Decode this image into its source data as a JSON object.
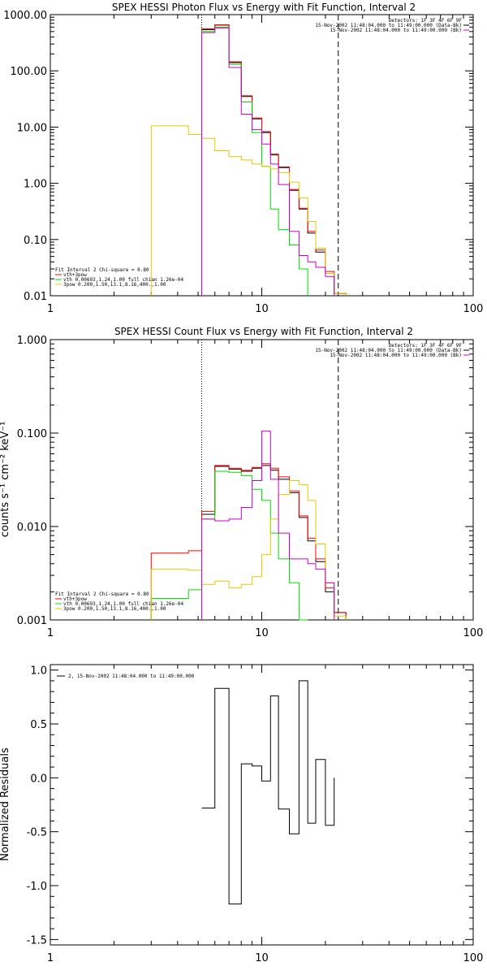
{
  "chart_data": [
    {
      "type": "line",
      "title": "SPEX HESSI Photon Flux vs Energy with Fit Function, Interval 2",
      "xscale": "log",
      "yscale": "log",
      "xlim": [
        1,
        100
      ],
      "ylim": [
        0.01,
        1000
      ],
      "xtick_labels": [
        "1",
        "10",
        "100"
      ],
      "ytick_labels": [
        "0.01",
        "0.10",
        "1.00",
        "10.00",
        "100.00",
        "1000.00"
      ],
      "info_lines": [
        "Detectors: 1F 3F 4F 6F 9F",
        "15-Nov-2002 11:48:04.000 to 11:49:00.000 (Data-Bk)",
        "15-Nov-2002 11:48:04.000 to 11:49:00.000 (Bk)"
      ],
      "legend_lines": [
        "Fit Interval 2   Chi-square = 0.80",
        "vth+3pow",
        "vth 0.00693,1.24,1.00  full chian 1.26e-04",
        "3pow 0.200,1.50,13.1,8.16,400.,1.00"
      ],
      "energy_edges": [
        3.0,
        4.5,
        5.2,
        6.0,
        7.0,
        8.0,
        9.0,
        10.0,
        11.0,
        12.0,
        13.5,
        15.0,
        16.5,
        18.0,
        20.0,
        22.0,
        25.0
      ],
      "series": [
        {
          "name": "Data-Bk",
          "values": [
            null,
            null,
            540,
            650,
            140,
            35,
            14,
            8,
            3.2,
            1.9,
            0.75,
            0.35,
            0.13,
            0.06,
            0.025,
            0.011
          ]
        },
        {
          "name": "vth+3pow",
          "values": [
            null,
            null,
            560,
            660,
            145,
            36,
            14.5,
            8.3,
            3.3,
            1.95,
            0.78,
            0.36,
            0.14,
            0.065,
            0.027,
            0.011
          ]
        },
        {
          "name": "vth",
          "values": [
            null,
            null,
            500,
            600,
            130,
            28,
            8,
            2.0,
            0.35,
            0.15,
            0.08,
            0.03,
            null,
            null,
            null,
            null
          ]
        },
        {
          "name": "3pow",
          "values": [
            10.5,
            7.4,
            6.3,
            3.8,
            3.0,
            2.6,
            2.2,
            2.0,
            1.8,
            1.55,
            1.05,
            0.55,
            0.21,
            0.07,
            0.025,
            0.011
          ]
        },
        {
          "name": "Bk",
          "values": [
            null,
            null,
            480,
            580,
            115,
            17,
            9,
            5,
            2.2,
            0.95,
            0.14,
            0.052,
            0.04,
            0.032,
            0.022,
            null
          ]
        }
      ],
      "vlines": [
        {
          "x": 5.2,
          "style": "dotted"
        },
        {
          "x": 23.0,
          "style": "dashed"
        }
      ]
    },
    {
      "type": "line",
      "title": "SPEX HESSI Count Flux vs Energy with Fit Function, Interval 2",
      "xscale": "log",
      "yscale": "log",
      "xlim": [
        1,
        100
      ],
      "ylim": [
        0.001,
        1.0
      ],
      "xtick_labels": [
        "1",
        "10",
        "100"
      ],
      "ytick_labels": [
        "0.001",
        "0.010",
        "0.100",
        "1.000"
      ],
      "ylabel": "counts s⁻¹ cm⁻² keV⁻¹",
      "info_lines": [
        "Detectors: 1F 3F 4F 6F 9F",
        "15-Nov-2002 11:48:04.000 to 11:49:00.000 (Data-Bk)",
        "15-Nov-2002 11:48:04.000 to 11:49:00.000 (Bk)"
      ],
      "legend_lines": [
        "Fit Interval 2   Chi-square = 0.80",
        "vth+3pow",
        "vth 0.00693,1.24,1.00  full chian 1.26e-04",
        "3pow 0.200,1.50,13.1,8.16,400.,1.00"
      ],
      "energy_edges": [
        3.0,
        4.5,
        5.2,
        6.0,
        7.0,
        8.0,
        9.0,
        10.0,
        11.0,
        12.0,
        13.5,
        15.0,
        16.5,
        18.0,
        20.0,
        22.0,
        25.0
      ],
      "series": [
        {
          "name": "Data-Bk",
          "values": [
            null,
            null,
            0.0135,
            0.044,
            0.041,
            0.039,
            0.042,
            0.045,
            0.04,
            0.032,
            0.023,
            0.0125,
            0.007,
            0.0042,
            0.002,
            0.0012
          ]
        },
        {
          "name": "vth+3pow",
          "values": [
            0.0052,
            0.0055,
            0.0145,
            0.045,
            0.042,
            0.04,
            0.043,
            0.047,
            0.042,
            0.034,
            0.024,
            0.013,
            0.0075,
            0.0045,
            0.0022,
            0.0012
          ]
        },
        {
          "name": "vth",
          "values": [
            0.0017,
            0.0021,
            0.012,
            0.039,
            0.038,
            0.035,
            0.025,
            0.019,
            0.0085,
            0.0045,
            0.0025,
            0.001,
            null,
            null,
            null,
            null
          ]
        },
        {
          "name": "3pow",
          "values": [
            0.0035,
            0.0034,
            0.0024,
            0.0026,
            0.0022,
            0.0024,
            0.0029,
            0.005,
            0.012,
            0.022,
            0.031,
            0.028,
            0.019,
            0.0065,
            0.0025,
            0.0011
          ]
        },
        {
          "name": "Bk",
          "values": [
            null,
            null,
            0.012,
            0.0115,
            0.012,
            0.016,
            0.031,
            0.105,
            0.032,
            0.0085,
            0.0045,
            0.0045,
            0.004,
            0.0035,
            0.0025,
            null
          ]
        }
      ],
      "vlines": [
        {
          "x": 5.2,
          "style": "dotted"
        },
        {
          "x": 23.0,
          "style": "dashed"
        }
      ]
    },
    {
      "type": "line",
      "title": "",
      "xscale": "log",
      "yscale": "linear",
      "xlim": [
        1,
        100
      ],
      "ylim": [
        -1.55,
        1.05
      ],
      "xtick_labels": [
        "1",
        "10",
        "100"
      ],
      "ytick_labels": [
        "-1.5",
        "-1.0",
        "-0.5",
        "0.0",
        "0.5",
        "1.0"
      ],
      "ylabel": "Normalized Residuals",
      "legend_lines": [
        "2, 15-Nov-2002 11:48:04.000 to 11:49:00.000"
      ],
      "energy_edges": [
        5.2,
        6.0,
        7.0,
        8.0,
        9.0,
        10.0,
        11.0,
        12.0,
        13.5,
        15.0,
        16.5,
        18.0,
        20.0,
        22.0
      ],
      "series": [
        {
          "name": "",
          "values": [
            -0.28,
            0.83,
            -1.17,
            0.13,
            0.11,
            -0.03,
            0.76,
            -0.29,
            -0.52,
            0.9,
            -0.42,
            0.17,
            -0.44
          ]
        }
      ]
    }
  ],
  "colors": {
    "data": "#000000",
    "fit_total": "#ff0000",
    "vth": "#00dd00",
    "pow": "#e6c800",
    "bk": "#cc00cc",
    "axis": "#000000",
    "background": "#ffffff"
  }
}
